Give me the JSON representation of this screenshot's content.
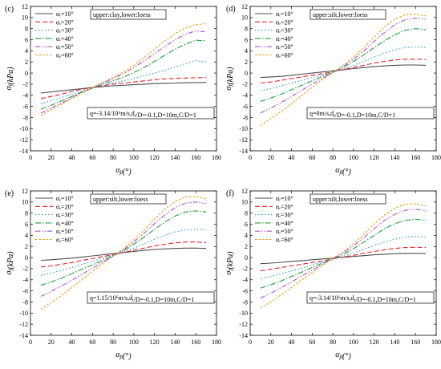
{
  "chart_data": [
    {
      "panel_label": "(c)",
      "type": "line",
      "x": [
        10,
        20,
        30,
        40,
        50,
        60,
        70,
        80,
        90,
        100,
        110,
        120,
        130,
        140,
        150,
        160,
        170
      ],
      "xlabel": "α_β(°)",
      "ylabel": "σ_f(kPa)",
      "xlim": [
        0,
        180
      ],
      "ylim": [
        -14,
        12
      ],
      "xticks": [
        0,
        20,
        40,
        60,
        80,
        100,
        120,
        140,
        160,
        180
      ],
      "yticks": [
        -14,
        -12,
        -10,
        -8,
        -6,
        -4,
        -2,
        0,
        2,
        4,
        6,
        8,
        10,
        12
      ],
      "legend_title": "upper:clay,lower:loess",
      "legend_position": "top-left",
      "annotation": "q=-3.14/10⁶m/s,d_t/D=-0.1,D=10m,C/D=1",
      "series": [
        {
          "name": "αᵣ=10°",
          "values": [
            -3.6,
            -3.4,
            -3.2,
            -3.0,
            -2.8,
            -2.6,
            -2.45,
            -2.3,
            -2.2,
            -2.1,
            -2.0,
            -1.9,
            -1.85,
            -1.8,
            -1.75,
            -1.72,
            -1.7
          ]
        },
        {
          "name": "αᵣ=20°",
          "values": [
            -4.6,
            -4.2,
            -3.8,
            -3.3,
            -2.9,
            -2.6,
            -2.3,
            -2.0,
            -1.8,
            -1.6,
            -1.4,
            -1.2,
            -1.05,
            -0.95,
            -0.9,
            -0.85,
            -0.8
          ]
        },
        {
          "name": "αᵣ=30°",
          "values": [
            -5.5,
            -5.0,
            -4.4,
            -3.8,
            -3.2,
            -2.7,
            -2.2,
            -1.8,
            -1.4,
            -1.0,
            -0.5,
            0.0,
            0.5,
            1.1,
            1.7,
            2.2,
            2.0
          ]
        },
        {
          "name": "αᵣ=40°",
          "values": [
            -6.5,
            -5.8,
            -5.0,
            -4.2,
            -3.4,
            -2.7,
            -2.0,
            -1.4,
            -0.7,
            0.1,
            1.0,
            2.1,
            3.2,
            4.3,
            5.2,
            5.9,
            5.8
          ]
        },
        {
          "name": "αᵣ=50°",
          "values": [
            -7.2,
            -6.3,
            -5.4,
            -4.4,
            -3.5,
            -2.7,
            -1.8,
            -1.0,
            -0.1,
            1.0,
            2.2,
            3.5,
            4.8,
            6.0,
            7.0,
            7.6,
            7.4
          ]
        },
        {
          "name": "αᵣ=60°",
          "values": [
            -7.6,
            -6.6,
            -5.6,
            -4.6,
            -3.6,
            -2.6,
            -1.7,
            -0.8,
            0.2,
            1.4,
            2.8,
            4.3,
            5.8,
            7.1,
            8.1,
            8.7,
            8.9
          ]
        }
      ]
    },
    {
      "panel_label": "(d)",
      "type": "line",
      "x": [
        10,
        20,
        30,
        40,
        50,
        60,
        70,
        80,
        90,
        100,
        110,
        120,
        130,
        140,
        150,
        160,
        170
      ],
      "xlabel": "α_β(°)",
      "ylabel": "σ_f(kPa)",
      "xlim": [
        0,
        180
      ],
      "ylim": [
        -14,
        12
      ],
      "xticks": [
        0,
        20,
        40,
        60,
        80,
        100,
        120,
        140,
        160,
        180
      ],
      "yticks": [
        -14,
        -12,
        -10,
        -8,
        -6,
        -4,
        -2,
        0,
        2,
        4,
        6,
        8,
        10,
        12
      ],
      "legend_title": "upper:silt,lower:loess",
      "legend_position": "top-left",
      "annotation": "q=0m/s,d_t/D=-0.1,D=10m,C/D=1",
      "series": [
        {
          "name": "αᵣ=10°",
          "values": [
            -0.8,
            -0.7,
            -0.6,
            -0.4,
            -0.2,
            0.0,
            0.2,
            0.4,
            0.6,
            0.8,
            1.0,
            1.15,
            1.3,
            1.4,
            1.45,
            1.45,
            1.4
          ]
        },
        {
          "name": "αᵣ=20°",
          "values": [
            -1.8,
            -1.6,
            -1.3,
            -1.0,
            -0.7,
            -0.4,
            -0.1,
            0.2,
            0.6,
            1.0,
            1.4,
            1.8,
            2.1,
            2.35,
            2.5,
            2.5,
            2.45
          ]
        },
        {
          "name": "αᵣ=30°",
          "values": [
            -3.2,
            -2.8,
            -2.3,
            -1.8,
            -1.3,
            -0.8,
            -0.3,
            0.2,
            0.7,
            1.4,
            2.1,
            2.9,
            3.6,
            4.2,
            4.6,
            4.7,
            4.6
          ]
        },
        {
          "name": "αᵣ=40°",
          "values": [
            -5.1,
            -4.5,
            -3.8,
            -3.0,
            -2.2,
            -1.4,
            -0.6,
            0.2,
            1.0,
            2.1,
            3.3,
            4.6,
            5.8,
            6.9,
            7.7,
            8.0,
            7.8
          ]
        },
        {
          "name": "αᵣ=50°",
          "values": [
            -7.2,
            -6.3,
            -5.3,
            -4.2,
            -3.1,
            -2.0,
            -0.9,
            0.1,
            1.2,
            2.5,
            4.0,
            5.7,
            7.3,
            8.7,
            9.6,
            9.9,
            9.7
          ]
        },
        {
          "name": "αᵣ=60°",
          "values": [
            -9.4,
            -8.2,
            -6.9,
            -5.5,
            -4.0,
            -2.6,
            -1.2,
            0.1,
            1.4,
            2.9,
            4.6,
            6.5,
            8.3,
            9.7,
            10.5,
            10.6,
            10.3
          ]
        }
      ]
    },
    {
      "panel_label": "(e)",
      "type": "line",
      "x": [
        10,
        20,
        30,
        40,
        50,
        60,
        70,
        80,
        90,
        100,
        110,
        120,
        130,
        140,
        150,
        160,
        170
      ],
      "xlabel": "α_β(°)",
      "ylabel": "σ_f(kPa)",
      "xlim": [
        0,
        180
      ],
      "ylim": [
        -14,
        12
      ],
      "xticks": [
        0,
        20,
        40,
        60,
        80,
        100,
        120,
        140,
        160,
        180
      ],
      "yticks": [
        -14,
        -12,
        -10,
        -8,
        -6,
        -4,
        -2,
        0,
        2,
        4,
        6,
        8,
        10,
        12
      ],
      "legend_title": "upper:silt,lower:loess",
      "legend_position": "top-left",
      "annotation": "q=1.15/10⁶m/s,d_t/D=-0.1,D=10m,C/D=1",
      "series": [
        {
          "name": "αᵣ=10°",
          "values": [
            -0.5,
            -0.4,
            -0.25,
            -0.1,
            0.1,
            0.3,
            0.5,
            0.7,
            0.9,
            1.1,
            1.3,
            1.45,
            1.55,
            1.65,
            1.7,
            1.7,
            1.65
          ]
        },
        {
          "name": "αᵣ=20°",
          "values": [
            -1.7,
            -1.5,
            -1.2,
            -0.9,
            -0.5,
            -0.2,
            0.2,
            0.5,
            0.9,
            1.3,
            1.7,
            2.1,
            2.4,
            2.65,
            2.8,
            2.8,
            2.7
          ]
        },
        {
          "name": "αᵣ=30°",
          "values": [
            -3.2,
            -2.8,
            -2.3,
            -1.8,
            -1.2,
            -0.7,
            -0.1,
            0.4,
            1.0,
            1.7,
            2.5,
            3.3,
            4.0,
            4.6,
            5.0,
            5.1,
            5.0
          ]
        },
        {
          "name": "αᵣ=40°",
          "values": [
            -5.0,
            -4.4,
            -3.7,
            -2.9,
            -2.1,
            -1.3,
            -0.5,
            0.3,
            1.2,
            2.4,
            3.7,
            5.1,
            6.4,
            7.5,
            8.2,
            8.4,
            8.2
          ]
        },
        {
          "name": "αᵣ=50°",
          "values": [
            -7.0,
            -6.1,
            -5.1,
            -4.1,
            -3.0,
            -1.9,
            -0.8,
            0.3,
            1.4,
            2.8,
            4.4,
            6.1,
            7.7,
            9.0,
            9.8,
            10.0,
            9.7
          ]
        },
        {
          "name": "αᵣ=60°",
          "values": [
            -9.3,
            -8.1,
            -6.8,
            -5.4,
            -3.9,
            -2.5,
            -1.1,
            0.3,
            1.6,
            3.2,
            5.0,
            6.9,
            8.7,
            10.1,
            10.9,
            11.0,
            10.6
          ]
        }
      ]
    },
    {
      "panel_label": "(f)",
      "type": "line",
      "x": [
        10,
        20,
        30,
        40,
        50,
        60,
        70,
        80,
        90,
        100,
        110,
        120,
        130,
        140,
        150,
        160,
        170
      ],
      "xlabel": "α_β(°)",
      "ylabel": "σ_f(kPa)",
      "xlim": [
        0,
        180
      ],
      "ylim": [
        -14,
        12
      ],
      "xticks": [
        0,
        20,
        40,
        60,
        80,
        100,
        120,
        140,
        160,
        180
      ],
      "yticks": [
        -14,
        -12,
        -10,
        -8,
        -6,
        -4,
        -2,
        0,
        2,
        4,
        6,
        8,
        10,
        12
      ],
      "legend_title": "upper:silt,lower:loess",
      "legend_position": "top-left",
      "annotation": "q=-3.14/10⁶m/s,d_t/D=-0.1,D=10m,C/D=1",
      "series": [
        {
          "name": "αᵣ=10°",
          "values": [
            -1.1,
            -1.0,
            -0.85,
            -0.7,
            -0.55,
            -0.4,
            -0.25,
            -0.1,
            0.05,
            0.2,
            0.35,
            0.5,
            0.6,
            0.7,
            0.75,
            0.75,
            0.72
          ]
        },
        {
          "name": "αᵣ=20°",
          "values": [
            -2.4,
            -2.1,
            -1.8,
            -1.5,
            -1.2,
            -0.9,
            -0.6,
            -0.2,
            0.1,
            0.4,
            0.8,
            1.1,
            1.4,
            1.65,
            1.8,
            1.85,
            1.8
          ]
        },
        {
          "name": "αᵣ=30°",
          "values": [
            -3.8,
            -3.4,
            -2.9,
            -2.4,
            -1.9,
            -1.3,
            -0.8,
            -0.3,
            0.2,
            0.8,
            1.5,
            2.2,
            2.8,
            3.3,
            3.7,
            3.8,
            3.7
          ]
        },
        {
          "name": "αᵣ=40°",
          "values": [
            -5.5,
            -4.9,
            -4.2,
            -3.4,
            -2.6,
            -1.8,
            -1.0,
            -0.2,
            0.5,
            1.6,
            2.8,
            4.0,
            5.2,
            6.1,
            6.7,
            6.9,
            6.7
          ]
        },
        {
          "name": "αᵣ=50°",
          "values": [
            -7.3,
            -6.4,
            -5.4,
            -4.4,
            -3.3,
            -2.3,
            -1.2,
            -0.2,
            0.8,
            2.1,
            3.6,
            5.2,
            6.7,
            7.8,
            8.5,
            8.7,
            8.4
          ]
        },
        {
          "name": "αᵣ=60°",
          "values": [
            -9.1,
            -8.0,
            -6.7,
            -5.4,
            -4.0,
            -2.7,
            -1.4,
            -0.1,
            1.0,
            2.5,
            4.2,
            6.0,
            7.7,
            8.9,
            9.6,
            9.7,
            9.3
          ]
        }
      ]
    }
  ],
  "style": {
    "series_colors": [
      "#4d4d4d",
      "#e8222a",
      "#2b9ad6",
      "#1e9e3c",
      "#b24fd6",
      "#f09a14"
    ],
    "series_dash": [
      "",
      "6,3",
      "1.5,2.5",
      "7,2,1.5,2",
      "6,2,1.5,2,1.5,2",
      "2.5,2"
    ]
  }
}
